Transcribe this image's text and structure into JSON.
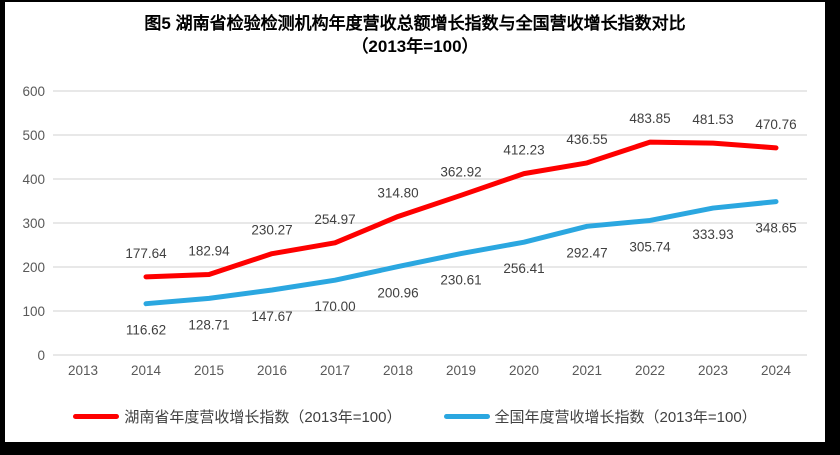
{
  "page": {
    "frame_color": "#000000",
    "background": "#FFFFFF"
  },
  "chart_data": {
    "type": "line",
    "title": "图5 湖南省检验检测机构年度营收总额增长指数与全国营收增长指数对比",
    "subtitle": "（2013年=100）",
    "categories": [
      "2013",
      "2014",
      "2015",
      "2016",
      "2017",
      "2018",
      "2019",
      "2020",
      "2021",
      "2022",
      "2023",
      "2024"
    ],
    "series": [
      {
        "name": "湖南省年度营收增长指数（2013年=100）",
        "color": "#FE0000",
        "label_position": "above",
        "values": [
          null,
          177.64,
          182.94,
          230.27,
          254.97,
          314.8,
          362.92,
          412.23,
          436.55,
          483.85,
          481.53,
          470.76
        ]
      },
      {
        "name": "全国年度营收增长指数（2013年=100）",
        "color": "#2BA7E0",
        "label_position": "below",
        "values": [
          null,
          116.62,
          128.71,
          147.67,
          170.0,
          200.96,
          230.61,
          256.41,
          292.47,
          305.74,
          333.93,
          348.65
        ]
      }
    ],
    "ylim": [
      0,
      600
    ],
    "yticks": [
      0,
      100,
      200,
      300,
      400,
      500,
      600
    ],
    "grid": true,
    "gridline_color": "#D9D9D9",
    "axis_label_color": "#595959",
    "data_label_color": "#404040",
    "legend_position": "bottom",
    "data_label_decimals": 2
  }
}
